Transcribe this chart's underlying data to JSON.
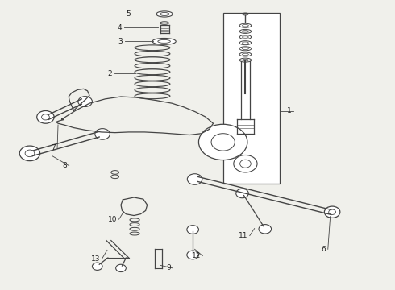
{
  "bg_color": "#f0f0eb",
  "line_color": "#444444",
  "figsize": [
    4.9,
    3.6
  ],
  "dpi": 100
}
